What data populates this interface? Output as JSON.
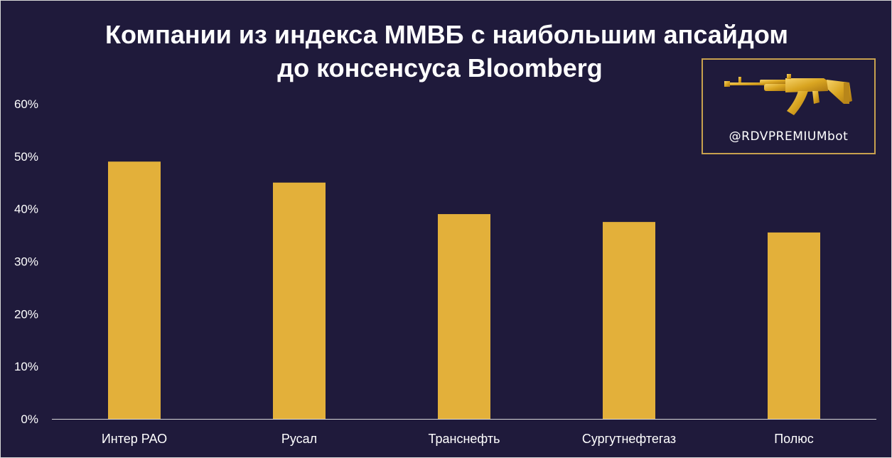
{
  "colors": {
    "background": "#1f1a3b",
    "bar": "#e3b03a",
    "text": "#ffffff",
    "axis": "#d9d9d9",
    "box_border": "#c8a14e",
    "logo_gold": "#d9a521"
  },
  "brand": {
    "handle": "@RDVPREMIUMbot",
    "logo_icon": "golden-rifle-icon"
  },
  "chart_data": {
    "type": "bar",
    "title": "Компании из индекса ММВБ с наибольшим апсайдом до консенсуса Bloomberg",
    "title_lines": [
      "Компании из индекса ММВБ с наибольшим апсайдом",
      "до консенсуса Bloomberg"
    ],
    "categories": [
      "Интер РАО",
      "Русал",
      "Транснефть",
      "Сургутнефтегаз",
      "Полюс"
    ],
    "values": [
      49,
      45,
      39,
      37.5,
      35.5
    ],
    "unit": "%",
    "ylim": [
      0,
      60
    ],
    "yticks": [
      0,
      10,
      20,
      30,
      40,
      50,
      60
    ],
    "ytick_labels": [
      "0%",
      "10%",
      "20%",
      "30%",
      "40%",
      "50%",
      "60%"
    ],
    "xlabel": "",
    "ylabel": "",
    "grid": false,
    "legend": false
  }
}
